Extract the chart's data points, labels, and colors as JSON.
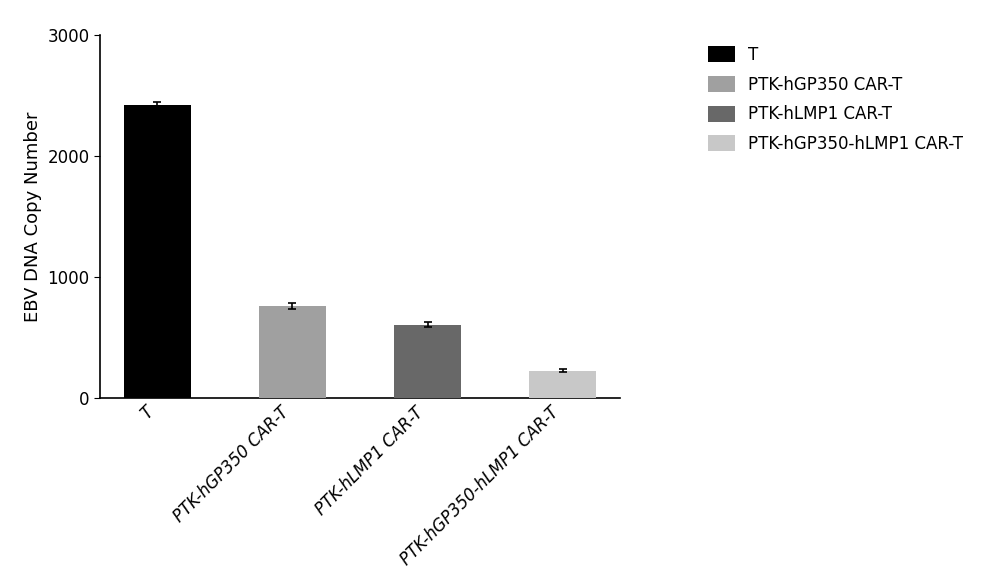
{
  "categories": [
    "T",
    "PTK-hGP350 CAR-T",
    "PTK-hLMP1 CAR-T",
    "PTK-hGP350-hLMP1 CAR-T"
  ],
  "values": [
    2420,
    760,
    610,
    230
  ],
  "errors": [
    25,
    25,
    20,
    15
  ],
  "bar_colors": [
    "#000000",
    "#a0a0a0",
    "#686868",
    "#c8c8c8"
  ],
  "ylabel": "EBV DNA Copy Number",
  "ylim": [
    0,
    3000
  ],
  "yticks": [
    0,
    1000,
    2000,
    3000
  ],
  "legend_labels": [
    "T",
    "PTK-hGP350 CAR-T",
    "PTK-hLMP1 CAR-T",
    "PTK-hGP350-hLMP1 CAR-T"
  ],
  "legend_colors": [
    "#000000",
    "#a0a0a0",
    "#686868",
    "#c8c8c8"
  ],
  "bar_width": 0.5,
  "background_color": "#ffffff",
  "errorbar_color": "#000000",
  "errorbar_capsize": 3,
  "errorbar_linewidth": 1.2,
  "ylabel_fontsize": 13,
  "tick_fontsize": 12,
  "legend_fontsize": 12
}
